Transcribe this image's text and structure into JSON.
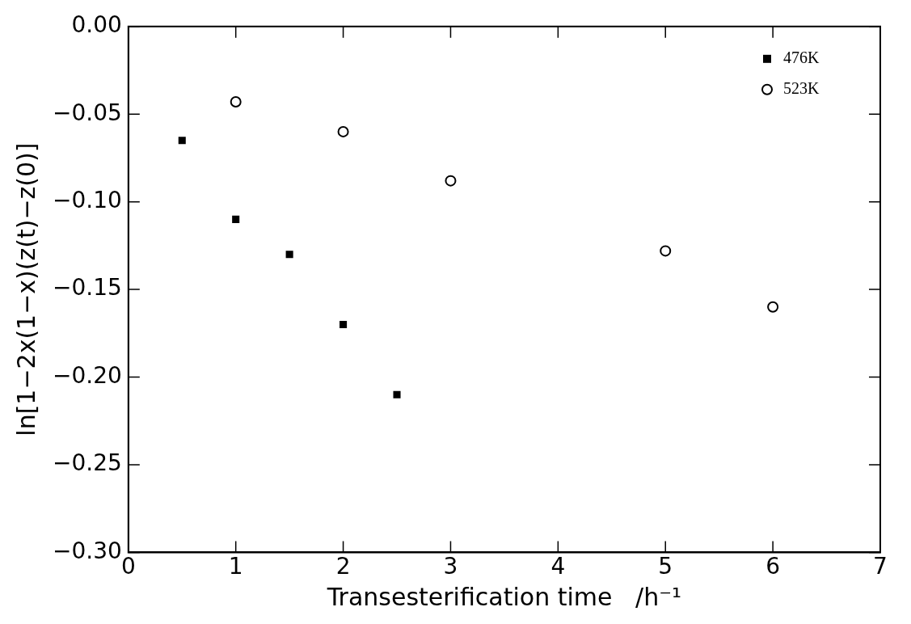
{
  "chart_data": {
    "type": "scatter",
    "xlabel": "Transesterification time   /h⁻¹",
    "ylabel": "ln[1−2x(1−x)(z(t)−z(0)]",
    "xlim": [
      0,
      7
    ],
    "xticks": [
      0,
      1,
      2,
      3,
      4,
      5,
      6,
      7
    ],
    "ylim": [
      -0.3,
      0
    ],
    "yticks": [
      {
        "value": -0.3,
        "label": "−0.30"
      },
      {
        "value": -0.25,
        "label": "−0.25"
      },
      {
        "value": -0.2,
        "label": "−0.20"
      },
      {
        "value": -0.15,
        "label": "−0.15"
      },
      {
        "value": -0.1,
        "label": "−0.10"
      },
      {
        "value": -0.05,
        "label": "−0.05"
      },
      {
        "value": 0,
        "label": "0.00"
      }
    ],
    "grid": false,
    "legend": "top right",
    "series": [
      {
        "name": "476K",
        "color": "#000000",
        "marker": "square",
        "x": [
          0.5,
          1,
          1.5,
          2,
          2.5
        ],
        "values": [
          -0.065,
          -0.11,
          -0.13,
          -0.17,
          -0.21
        ]
      },
      {
        "name": "523K",
        "color": "#000000",
        "marker": "circle",
        "x": [
          1,
          2,
          3,
          5,
          6
        ],
        "values": [
          -0.043,
          -0.06,
          -0.088,
          -0.128,
          -0.16
        ]
      }
    ]
  }
}
